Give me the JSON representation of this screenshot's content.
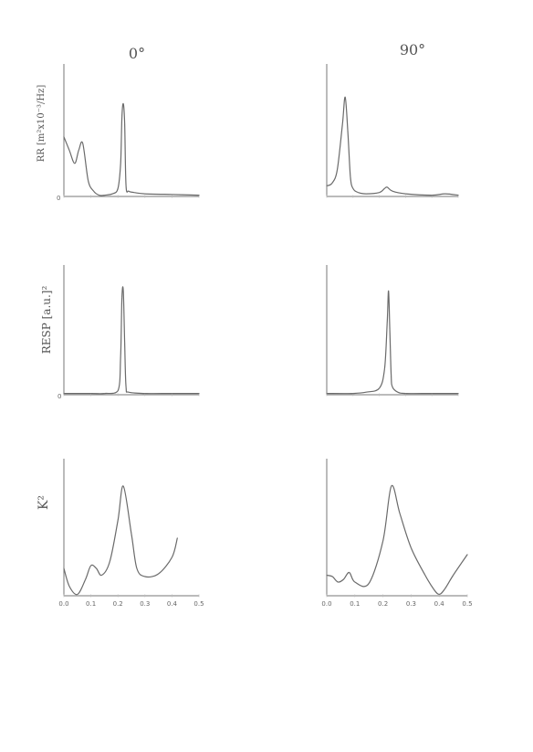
{
  "page": {
    "column_headers": [
      "0°",
      "90°"
    ],
    "row_labels": {
      "rr": "RR [m²x10⁻³/Hz]",
      "resp": "RESP [a.u.]²",
      "k2": "K²"
    }
  },
  "colors": {
    "ink": "#6a6a6a",
    "axis": "#777777"
  },
  "chart_data": [
    {
      "type": "line",
      "panel": "rr-0deg",
      "ylabel": "RR [m²x10⁻³/Hz]",
      "xlim": [
        0,
        0.5
      ],
      "ylim": [
        0,
        1
      ],
      "x": [
        0.0,
        0.02,
        0.04,
        0.055,
        0.07,
        0.09,
        0.11,
        0.13,
        0.15,
        0.18,
        0.2,
        0.21,
        0.215,
        0.22,
        0.225,
        0.23,
        0.24,
        0.26,
        0.3,
        0.4,
        0.5
      ],
      "y": [
        0.45,
        0.35,
        0.25,
        0.35,
        0.4,
        0.12,
        0.04,
        0.01,
        0.01,
        0.02,
        0.06,
        0.25,
        0.6,
        0.7,
        0.55,
        0.08,
        0.04,
        0.03,
        0.02,
        0.015,
        0.01
      ]
    },
    {
      "type": "line",
      "panel": "rr-90deg",
      "xlim": [
        0,
        0.5
      ],
      "ylim": [
        0,
        1
      ],
      "x": [
        0.0,
        0.02,
        0.04,
        0.06,
        0.07,
        0.08,
        0.09,
        0.1,
        0.12,
        0.15,
        0.2,
        0.22,
        0.23,
        0.25,
        0.3,
        0.4,
        0.45,
        0.5
      ],
      "y": [
        0.08,
        0.1,
        0.2,
        0.55,
        0.75,
        0.5,
        0.15,
        0.06,
        0.03,
        0.02,
        0.03,
        0.06,
        0.07,
        0.04,
        0.02,
        0.01,
        0.02,
        0.01
      ]
    },
    {
      "type": "line",
      "panel": "resp-0deg",
      "ylabel": "RESP [a.u.]²",
      "xlim": [
        0,
        0.5
      ],
      "ylim": [
        0,
        1
      ],
      "x": [
        0.0,
        0.1,
        0.15,
        0.2,
        0.21,
        0.215,
        0.22,
        0.225,
        0.23,
        0.24,
        0.3,
        0.4,
        0.5
      ],
      "y": [
        0.01,
        0.01,
        0.01,
        0.03,
        0.3,
        0.75,
        0.8,
        0.4,
        0.06,
        0.02,
        0.01,
        0.01,
        0.01
      ]
    },
    {
      "type": "line",
      "panel": "resp-90deg",
      "xlim": [
        0,
        0.5
      ],
      "ylim": [
        0,
        1
      ],
      "x": [
        0.0,
        0.1,
        0.15,
        0.2,
        0.22,
        0.23,
        0.235,
        0.24,
        0.245,
        0.25,
        0.27,
        0.3,
        0.4,
        0.5
      ],
      "y": [
        0.01,
        0.01,
        0.02,
        0.05,
        0.2,
        0.55,
        0.8,
        0.5,
        0.15,
        0.06,
        0.02,
        0.01,
        0.01,
        0.01
      ]
    },
    {
      "type": "line",
      "panel": "k2-0deg",
      "ylabel": "K²",
      "xlim": [
        0,
        0.5
      ],
      "ylim": [
        0,
        1
      ],
      "x": [
        0.0,
        0.02,
        0.05,
        0.08,
        0.1,
        0.12,
        0.14,
        0.17,
        0.2,
        0.22,
        0.25,
        0.27,
        0.3,
        0.35,
        0.4,
        0.42
      ],
      "y": [
        0.2,
        0.07,
        0.01,
        0.12,
        0.22,
        0.2,
        0.15,
        0.25,
        0.55,
        0.8,
        0.45,
        0.2,
        0.14,
        0.16,
        0.28,
        0.42
      ]
    },
    {
      "type": "line",
      "panel": "k2-90deg",
      "xlim": [
        0,
        0.5
      ],
      "ylim": [
        0,
        1
      ],
      "x": [
        0.0,
        0.02,
        0.04,
        0.06,
        0.08,
        0.1,
        0.15,
        0.2,
        0.23,
        0.26,
        0.3,
        0.35,
        0.38,
        0.4,
        0.42,
        0.45,
        0.5
      ],
      "y": [
        0.15,
        0.14,
        0.1,
        0.12,
        0.17,
        0.1,
        0.09,
        0.4,
        0.8,
        0.6,
        0.35,
        0.15,
        0.05,
        0.01,
        0.05,
        0.15,
        0.3
      ]
    }
  ],
  "x_tick_labels": {
    "k2-0deg": [
      "0.0",
      "0.1",
      "0.2",
      "0.3",
      "0.4",
      "0.5"
    ],
    "k2-90deg": [
      "0.0",
      "0.1",
      "0.2",
      "0.3",
      "0.4",
      "0.5"
    ]
  },
  "y_zero_label": "0"
}
